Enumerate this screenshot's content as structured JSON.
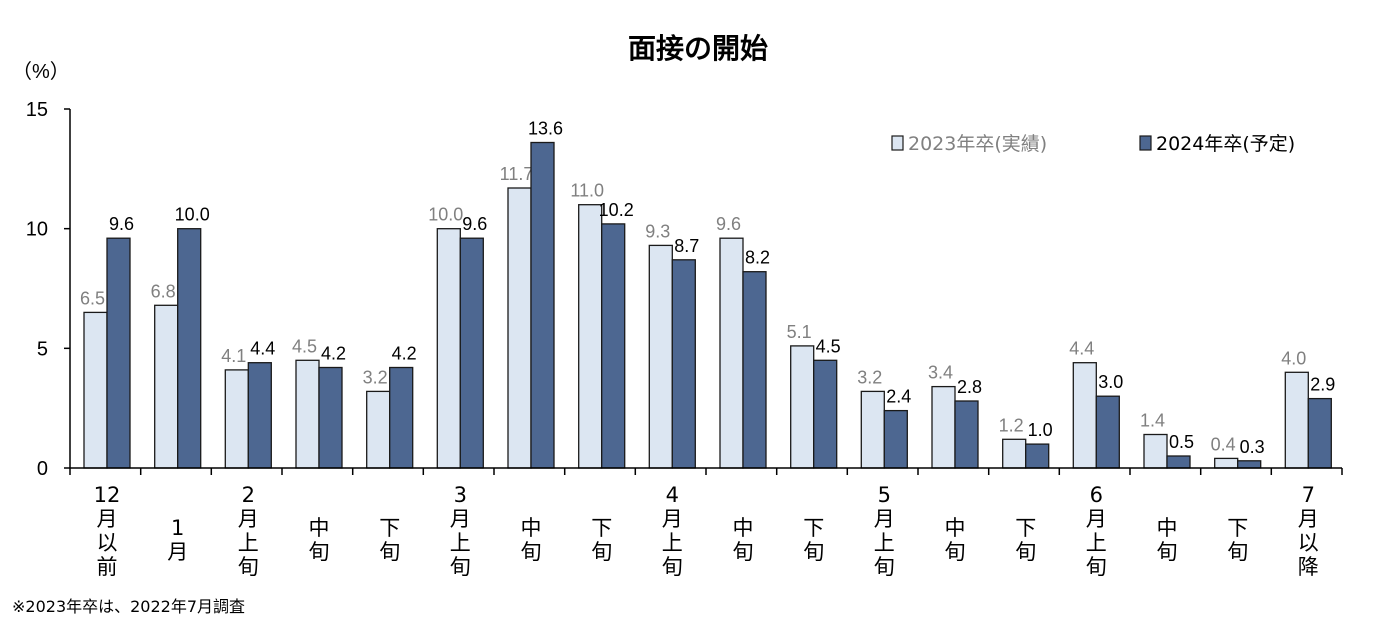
{
  "chart_data": {
    "type": "bar",
    "title": "面接の開始",
    "unit_label": "（%）",
    "ylim": [
      0,
      15
    ],
    "yticks": [
      0,
      5,
      10,
      15
    ],
    "categories": [
      [
        "12",
        "月",
        "以",
        "前"
      ],
      [
        "1",
        "月"
      ],
      [
        "2",
        "月",
        "上",
        "旬"
      ],
      [
        "中",
        "旬"
      ],
      [
        "下",
        "旬"
      ],
      [
        "3",
        "月",
        "上",
        "旬"
      ],
      [
        "中",
        "旬"
      ],
      [
        "下",
        "旬"
      ],
      [
        "4",
        "月",
        "上",
        "旬"
      ],
      [
        "中",
        "旬"
      ],
      [
        "下",
        "旬"
      ],
      [
        "5",
        "月",
        "上",
        "旬"
      ],
      [
        "中",
        "旬"
      ],
      [
        "下",
        "旬"
      ],
      [
        "6",
        "月",
        "上",
        "旬"
      ],
      [
        "中",
        "旬"
      ],
      [
        "下",
        "旬"
      ],
      [
        "7",
        "月",
        "以",
        "降"
      ]
    ],
    "series": [
      {
        "name": "2023年卒(実績)",
        "color": "#dce6f2",
        "label_color": "#808080",
        "values": [
          6.5,
          6.8,
          4.1,
          4.5,
          3.2,
          10.0,
          11.7,
          11.0,
          9.3,
          9.6,
          5.1,
          3.2,
          3.4,
          1.2,
          4.4,
          1.4,
          0.4,
          4.0
        ]
      },
      {
        "name": "2024年卒(予定)",
        "color": "#4d6791",
        "label_color": "#000000",
        "values": [
          9.6,
          10.0,
          4.4,
          4.2,
          4.2,
          9.6,
          13.6,
          10.2,
          8.7,
          8.2,
          4.5,
          2.4,
          2.8,
          1.0,
          3.0,
          0.5,
          0.3,
          2.9
        ]
      }
    ],
    "legend_position": "top-right",
    "grid": false,
    "footnote": "※2023年卒は、2022年7月調査"
  }
}
